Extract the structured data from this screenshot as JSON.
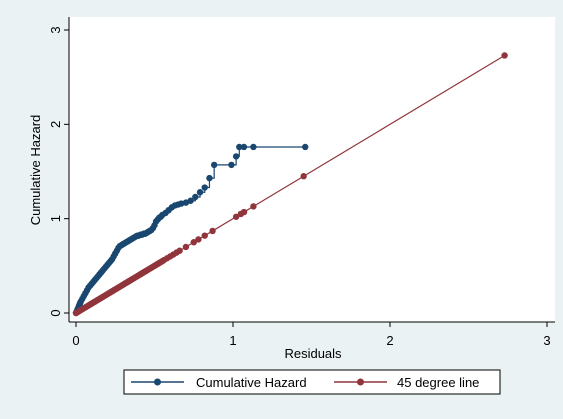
{
  "chart_data": {
    "type": "line",
    "xlabel": "Residuals",
    "ylabel": "Cumulative Hazard",
    "xlim": [
      0,
      3
    ],
    "ylim": [
      0,
      3
    ],
    "x_ticks": [
      "0",
      "1",
      "2",
      "3"
    ],
    "y_ticks": [
      "0",
      "1",
      "2",
      "3"
    ],
    "grid": false,
    "legend_position": "bottom",
    "series": [
      {
        "name": "Cumulative Hazard",
        "color": "#1a476f",
        "marker": "circle",
        "step": true,
        "points": [
          [
            0.0,
            0.0
          ],
          [
            0.005,
            0.02
          ],
          [
            0.01,
            0.04
          ],
          [
            0.015,
            0.06
          ],
          [
            0.02,
            0.08
          ],
          [
            0.025,
            0.1
          ],
          [
            0.03,
            0.12
          ],
          [
            0.04,
            0.15
          ],
          [
            0.05,
            0.18
          ],
          [
            0.06,
            0.21
          ],
          [
            0.07,
            0.24
          ],
          [
            0.08,
            0.27
          ],
          [
            0.09,
            0.29
          ],
          [
            0.1,
            0.31
          ],
          [
            0.11,
            0.33
          ],
          [
            0.12,
            0.35
          ],
          [
            0.13,
            0.37
          ],
          [
            0.14,
            0.39
          ],
          [
            0.15,
            0.41
          ],
          [
            0.16,
            0.43
          ],
          [
            0.17,
            0.45
          ],
          [
            0.18,
            0.47
          ],
          [
            0.19,
            0.49
          ],
          [
            0.2,
            0.51
          ],
          [
            0.21,
            0.53
          ],
          [
            0.22,
            0.55
          ],
          [
            0.23,
            0.57
          ],
          [
            0.24,
            0.6
          ],
          [
            0.25,
            0.63
          ],
          [
            0.26,
            0.66
          ],
          [
            0.27,
            0.69
          ],
          [
            0.28,
            0.71
          ],
          [
            0.29,
            0.72
          ],
          [
            0.3,
            0.73
          ],
          [
            0.31,
            0.74
          ],
          [
            0.32,
            0.75
          ],
          [
            0.33,
            0.76
          ],
          [
            0.34,
            0.77
          ],
          [
            0.35,
            0.78
          ],
          [
            0.36,
            0.79
          ],
          [
            0.37,
            0.8
          ],
          [
            0.38,
            0.81
          ],
          [
            0.39,
            0.82
          ],
          [
            0.4,
            0.82
          ],
          [
            0.41,
            0.83
          ],
          [
            0.42,
            0.83
          ],
          [
            0.43,
            0.84
          ],
          [
            0.44,
            0.84
          ],
          [
            0.45,
            0.85
          ],
          [
            0.46,
            0.86
          ],
          [
            0.47,
            0.87
          ],
          [
            0.48,
            0.88
          ],
          [
            0.49,
            0.9
          ],
          [
            0.5,
            0.93
          ],
          [
            0.51,
            0.97
          ],
          [
            0.52,
            0.99
          ],
          [
            0.53,
            1.01
          ],
          [
            0.54,
            1.02
          ],
          [
            0.55,
            1.04
          ],
          [
            0.57,
            1.06
          ],
          [
            0.59,
            1.09
          ],
          [
            0.61,
            1.12
          ],
          [
            0.63,
            1.14
          ],
          [
            0.65,
            1.15
          ],
          [
            0.67,
            1.16
          ],
          [
            0.7,
            1.17
          ],
          [
            0.73,
            1.19
          ],
          [
            0.76,
            1.23
          ],
          [
            0.79,
            1.28
          ],
          [
            0.82,
            1.33
          ],
          [
            0.85,
            1.43
          ],
          [
            0.88,
            1.57
          ],
          [
            0.99,
            1.57
          ],
          [
            1.02,
            1.66
          ],
          [
            1.04,
            1.76
          ],
          [
            1.07,
            1.76
          ],
          [
            1.13,
            1.76
          ],
          [
            1.46,
            1.76
          ]
        ]
      },
      {
        "name": "45 degree line",
        "color": "#90353b",
        "marker": "circle",
        "step": false,
        "points": [
          [
            0.0,
            0.0
          ],
          [
            0.01,
            0.01
          ],
          [
            0.02,
            0.02
          ],
          [
            0.03,
            0.03
          ],
          [
            0.04,
            0.04
          ],
          [
            0.05,
            0.05
          ],
          [
            0.06,
            0.06
          ],
          [
            0.07,
            0.07
          ],
          [
            0.08,
            0.08
          ],
          [
            0.09,
            0.09
          ],
          [
            0.1,
            0.1
          ],
          [
            0.11,
            0.11
          ],
          [
            0.12,
            0.12
          ],
          [
            0.13,
            0.13
          ],
          [
            0.14,
            0.14
          ],
          [
            0.15,
            0.15
          ],
          [
            0.16,
            0.16
          ],
          [
            0.17,
            0.17
          ],
          [
            0.18,
            0.18
          ],
          [
            0.19,
            0.19
          ],
          [
            0.2,
            0.2
          ],
          [
            0.21,
            0.21
          ],
          [
            0.22,
            0.22
          ],
          [
            0.23,
            0.23
          ],
          [
            0.24,
            0.24
          ],
          [
            0.25,
            0.25
          ],
          [
            0.26,
            0.26
          ],
          [
            0.27,
            0.27
          ],
          [
            0.28,
            0.28
          ],
          [
            0.29,
            0.29
          ],
          [
            0.3,
            0.3
          ],
          [
            0.31,
            0.31
          ],
          [
            0.32,
            0.32
          ],
          [
            0.33,
            0.33
          ],
          [
            0.34,
            0.34
          ],
          [
            0.35,
            0.35
          ],
          [
            0.36,
            0.36
          ],
          [
            0.37,
            0.37
          ],
          [
            0.38,
            0.38
          ],
          [
            0.39,
            0.39
          ],
          [
            0.4,
            0.4
          ],
          [
            0.41,
            0.41
          ],
          [
            0.42,
            0.42
          ],
          [
            0.43,
            0.43
          ],
          [
            0.44,
            0.44
          ],
          [
            0.45,
            0.45
          ],
          [
            0.46,
            0.46
          ],
          [
            0.47,
            0.47
          ],
          [
            0.48,
            0.48
          ],
          [
            0.49,
            0.49
          ],
          [
            0.5,
            0.5
          ],
          [
            0.51,
            0.51
          ],
          [
            0.52,
            0.52
          ],
          [
            0.53,
            0.53
          ],
          [
            0.54,
            0.54
          ],
          [
            0.55,
            0.55
          ],
          [
            0.56,
            0.56
          ],
          [
            0.58,
            0.58
          ],
          [
            0.6,
            0.6
          ],
          [
            0.62,
            0.62
          ],
          [
            0.64,
            0.64
          ],
          [
            0.66,
            0.66
          ],
          [
            0.7,
            0.7
          ],
          [
            0.75,
            0.75
          ],
          [
            0.78,
            0.78
          ],
          [
            0.82,
            0.82
          ],
          [
            0.87,
            0.87
          ],
          [
            1.02,
            1.02
          ],
          [
            1.05,
            1.05
          ],
          [
            1.07,
            1.07
          ],
          [
            1.13,
            1.13
          ],
          [
            1.45,
            1.45
          ],
          [
            2.73,
            2.73
          ]
        ]
      }
    ]
  }
}
